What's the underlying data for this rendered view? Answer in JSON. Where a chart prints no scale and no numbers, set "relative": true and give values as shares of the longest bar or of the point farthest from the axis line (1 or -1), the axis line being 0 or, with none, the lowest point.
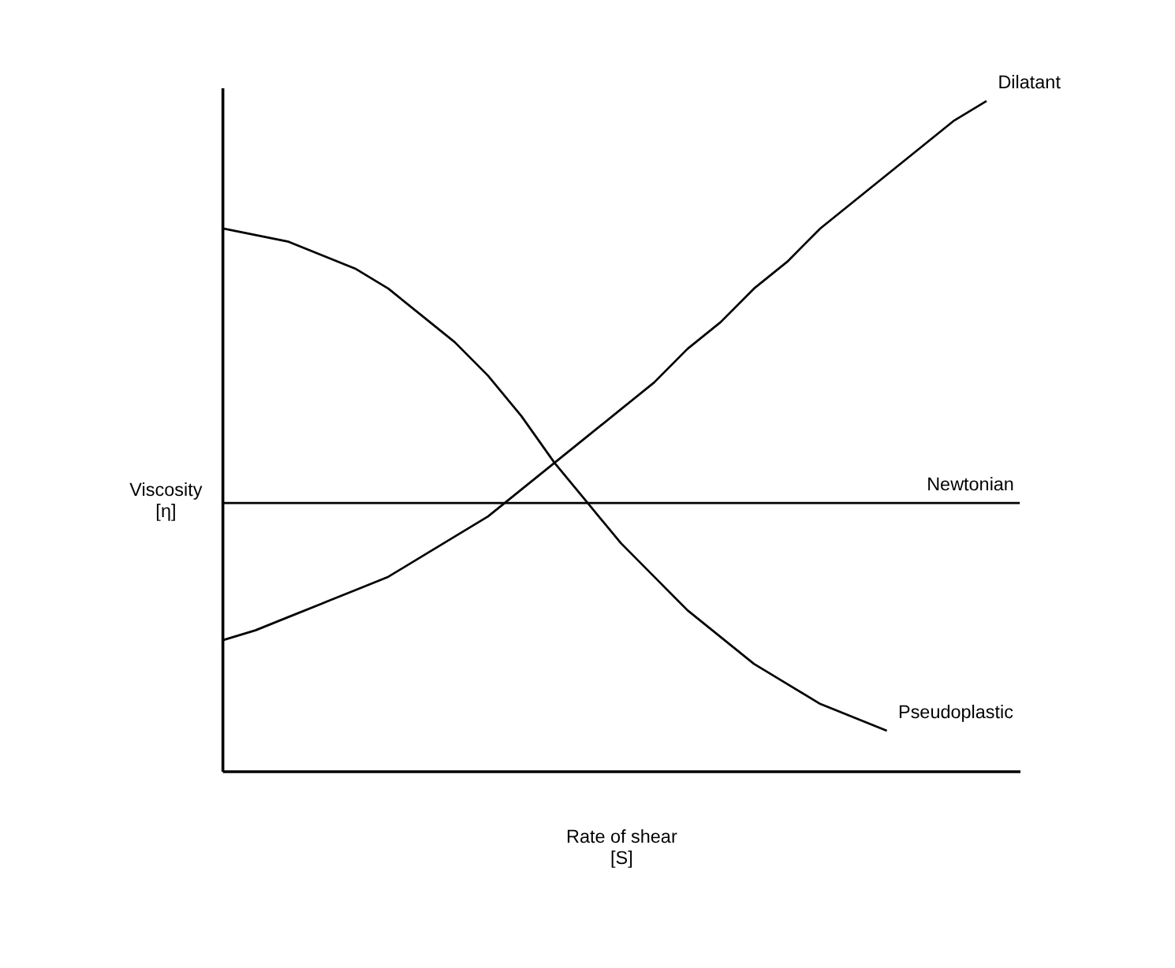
{
  "chart_data": {
    "type": "line",
    "relative": true,
    "xlabel": "Rate of shear\n[S]",
    "ylabel": "Viscosity\n[η]",
    "grid": false,
    "marker": "none",
    "line_style": "solid",
    "categories": [
      null,
      null,
      null,
      null,
      null,
      null,
      null,
      null,
      null,
      null,
      null,
      null,
      null,
      null,
      null,
      null,
      null,
      null,
      null,
      null,
      null,
      null,
      null,
      null,
      null
    ],
    "series": [
      {
        "name": "Dilatant",
        "color": "#000000",
        "values": [
          0.195,
          0.21,
          0.23,
          0.25,
          0.27,
          0.29,
          0.32,
          0.35,
          0.38,
          0.42,
          0.46,
          0.5,
          0.54,
          0.58,
          0.63,
          0.67,
          0.72,
          0.76,
          0.81,
          0.85,
          0.89,
          0.93,
          0.97,
          1.0,
          null
        ]
      },
      {
        "name": "Newtonian",
        "color": "#000000",
        "values": [
          0.4,
          0.4,
          0.4,
          0.4,
          0.4,
          0.4,
          0.4,
          0.4,
          0.4,
          0.4,
          0.4,
          0.4,
          0.4,
          0.4,
          0.4,
          0.4,
          0.4,
          0.4,
          0.4,
          0.4,
          0.4,
          0.4,
          0.4,
          0.4,
          0.4
        ]
      },
      {
        "name": "Pseudoplastic",
        "color": "#000000",
        "values": [
          0.81,
          0.8,
          0.79,
          0.77,
          0.75,
          0.72,
          0.68,
          0.64,
          0.59,
          0.53,
          0.46,
          0.4,
          0.34,
          0.29,
          0.24,
          0.2,
          0.16,
          0.13,
          0.1,
          0.08,
          0.06,
          null,
          null,
          null,
          null
        ]
      }
    ]
  }
}
